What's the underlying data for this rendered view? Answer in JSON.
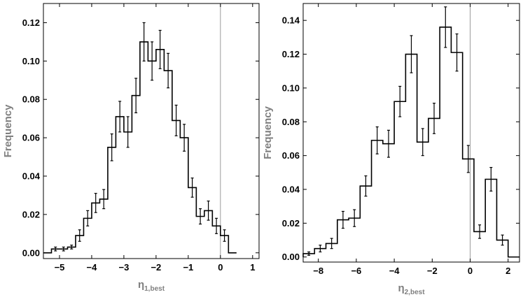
{
  "chart_data": [
    {
      "type": "histogram",
      "xlabel_main": "η",
      "xlabel_sub": "1,best",
      "ylabel": "Frequency",
      "xlim": [
        -5.5,
        1.2
      ],
      "ylim": [
        -0.003,
        0.13
      ],
      "bin_width": 0.25,
      "bin_start": -5.5,
      "values": [
        0.0,
        0.002,
        0.002,
        0.003,
        0.009,
        0.018,
        0.026,
        0.028,
        0.055,
        0.071,
        0.063,
        0.082,
        0.11,
        0.1,
        0.106,
        0.095,
        0.069,
        0.06,
        0.034,
        0.019,
        0.022,
        0.014,
        0.009,
        0.0
      ],
      "errors": [
        0.0,
        0.001,
        0.001,
        0.001,
        0.003,
        0.004,
        0.005,
        0.005,
        0.007,
        0.008,
        0.008,
        0.009,
        0.01,
        0.01,
        0.01,
        0.009,
        0.008,
        0.007,
        0.005,
        0.004,
        0.005,
        0.004,
        0.003,
        0.0
      ],
      "xticks": [
        -5,
        -4,
        -3,
        -2,
        -1,
        0,
        1
      ],
      "xtick_labels": [
        "−5",
        "−4",
        "−3",
        "−2",
        "−1",
        "0",
        "1"
      ],
      "yticks": [
        0.0,
        0.02,
        0.04,
        0.06,
        0.08,
        0.1,
        0.12
      ],
      "ytick_labels": [
        "0.00",
        "0.02",
        "0.04",
        "0.06",
        "0.08",
        "0.10",
        "0.12"
      ],
      "vline_x": 0,
      "grid": false
    },
    {
      "type": "histogram",
      "xlabel_main": "η",
      "xlabel_sub": "2,best",
      "ylabel": "Frequency",
      "xlim": [
        -8.8,
        2.6
      ],
      "ylim": [
        -0.003,
        0.15
      ],
      "bin_width": 0.6,
      "bin_start": -8.8,
      "values": [
        0.002,
        0.005,
        0.008,
        0.022,
        0.023,
        0.042,
        0.069,
        0.067,
        0.092,
        0.12,
        0.068,
        0.082,
        0.136,
        0.121,
        0.058,
        0.015,
        0.046,
        0.01,
        0.0
      ],
      "errors": [
        0.001,
        0.002,
        0.003,
        0.005,
        0.005,
        0.006,
        0.008,
        0.008,
        0.009,
        0.011,
        0.008,
        0.009,
        0.012,
        0.011,
        0.008,
        0.004,
        0.007,
        0.003,
        0.0
      ],
      "xticks": [
        -8,
        -6,
        -4,
        -2,
        0,
        2
      ],
      "xtick_labels": [
        "−8",
        "−6",
        "−4",
        "−2",
        "0",
        "2"
      ],
      "yticks": [
        0.0,
        0.02,
        0.04,
        0.06,
        0.08,
        0.1,
        0.12,
        0.14
      ],
      "ytick_labels": [
        "0.00",
        "0.02",
        "0.04",
        "0.06",
        "0.08",
        "0.10",
        "0.12",
        "0.14"
      ],
      "vline_x": 0,
      "grid": false
    }
  ]
}
